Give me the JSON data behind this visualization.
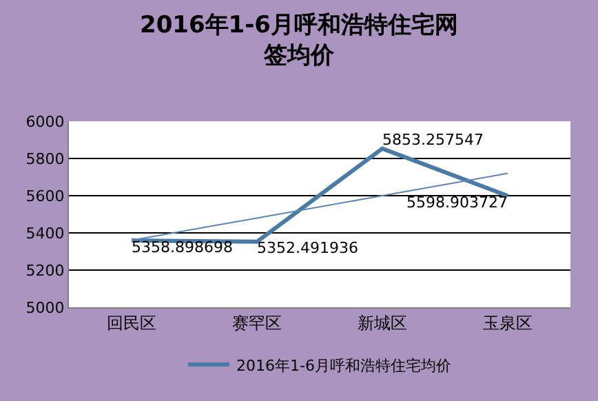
{
  "chart_data": {
    "type": "line",
    "title": "2016年1-6月呼和浩特住宅网签均价",
    "categories": [
      "回民区",
      "赛罕区",
      "新城区",
      "玉泉区"
    ],
    "series": [
      {
        "name": "2016年1-6月呼和浩特住宅均价",
        "color": "#4a7ba7",
        "values": [
          5358.898698,
          5352.491936,
          5853.257547,
          5598.903727
        ],
        "data_labels": true
      },
      {
        "type": "line",
        "color": "#5b86b8",
        "values": [
          5360,
          5480,
          5600,
          5720
        ]
      }
    ],
    "ylim": [
      5000,
      6000
    ],
    "yticks": [
      5000,
      5200,
      5400,
      5600,
      5800,
      6000
    ],
    "grid": "y",
    "legend": "bottom",
    "marker": "none"
  }
}
